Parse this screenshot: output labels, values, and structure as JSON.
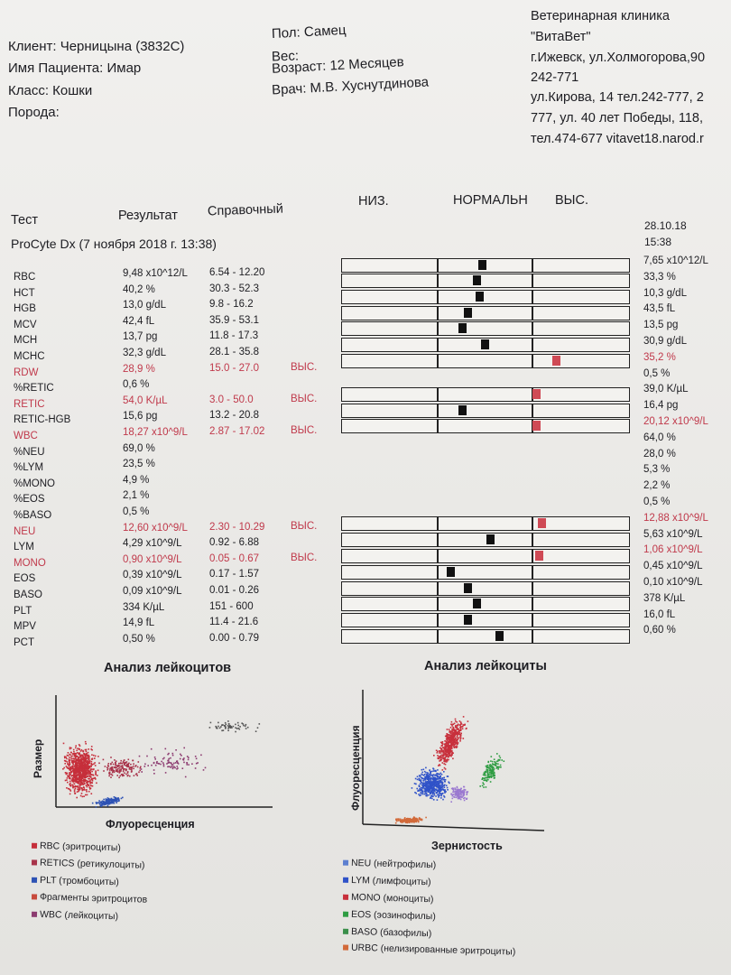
{
  "patient": {
    "client": "Клиент: Черницына (3832С)",
    "name": "Имя Пациента: Имар",
    "class": "Класс: Кошки",
    "breed": "Порода:",
    "sex": "Пол: Самец",
    "weight": "Вес:",
    "age": "Возраст: 12 Месяцев",
    "doctor": "Врач: М.В. Хуснутдинова"
  },
  "clinic": {
    "line1": "Ветеринарная клиника",
    "line2": "\"ВитаВет\"",
    "line3": "г.Ижевск, ул.Холмогорова,90",
    "line4": "242-771",
    "line5": "ул.Кирова, 14 тел.242-777, 2",
    "line6": "777, ул. 40 лет Победы, 118,",
    "line7": "тел.474-677 vitavet18.narod.r"
  },
  "columns": {
    "test": "Тест",
    "result": "Результат",
    "reference": "Справочный",
    "low": "НИЗ.",
    "normal": "НОРМАЛЬН",
    "high": "ВЫС."
  },
  "instrument": "ProCyte Dx (7 ноября 2018 г. 13:38)",
  "previous_date": "28.10.18",
  "previous_time": "15:38",
  "tests": [
    {
      "name": "RBC",
      "result": "9,48 x10^12/L",
      "ref": "6.54 - 12.20",
      "flag": ""
    },
    {
      "name": "HCT",
      "result": "40,2 %",
      "ref": "30.3 - 52.3",
      "flag": ""
    },
    {
      "name": "HGB",
      "result": "13,0 g/dL",
      "ref": "9.8 - 16.2",
      "flag": ""
    },
    {
      "name": "MCV",
      "result": "42,4 fL",
      "ref": "35.9 - 53.1",
      "flag": ""
    },
    {
      "name": "MCH",
      "result": "13,7 pg",
      "ref": "11.8 - 17.3",
      "flag": ""
    },
    {
      "name": "MCHC",
      "result": "32,3 g/dL",
      "ref": "28.1 - 35.8",
      "flag": ""
    },
    {
      "name": "RDW",
      "result": "28,9 %",
      "ref": "15.0 - 27.0",
      "flag": "ВЫС."
    },
    {
      "name": "%RETIC",
      "result": "0,6 %",
      "ref": "",
      "flag": ""
    },
    {
      "name": "RETIC",
      "result": "54,0 K/µL",
      "ref": "3.0 - 50.0",
      "flag": "ВЫС."
    },
    {
      "name": "RETIC-HGB",
      "result": "15,6 pg",
      "ref": "13.2 - 20.8",
      "flag": ""
    },
    {
      "name": "WBC",
      "result": "18,27 x10^9/L",
      "ref": "2.87 - 17.02",
      "flag": "ВЫС."
    },
    {
      "name": "%NEU",
      "result": "69,0 %",
      "ref": "",
      "flag": ""
    },
    {
      "name": "%LYM",
      "result": "23,5 %",
      "ref": "",
      "flag": ""
    },
    {
      "name": "%MONO",
      "result": "4,9 %",
      "ref": "",
      "flag": ""
    },
    {
      "name": "%EOS",
      "result": "2,1 %",
      "ref": "",
      "flag": ""
    },
    {
      "name": "%BASO",
      "result": "0,5 %",
      "ref": "",
      "flag": ""
    },
    {
      "name": "NEU",
      "result": "12,60 x10^9/L",
      "ref": "2.30 - 10.29",
      "flag": "ВЫС."
    },
    {
      "name": "LYM",
      "result": "4,29 x10^9/L",
      "ref": "0.92 - 6.88",
      "flag": ""
    },
    {
      "name": "MONO",
      "result": "0,90 x10^9/L",
      "ref": "0.05 - 0.67",
      "flag": "ВЫС."
    },
    {
      "name": "EOS",
      "result": "0,39 x10^9/L",
      "ref": "0.17 - 1.57",
      "flag": ""
    },
    {
      "name": "BASO",
      "result": "0,09 x10^9/L",
      "ref": "0.01 - 0.26",
      "flag": ""
    },
    {
      "name": "PLT",
      "result": "334 K/µL",
      "ref": "151 - 600",
      "flag": ""
    },
    {
      "name": "MPV",
      "result": "14,9 fL",
      "ref": "11.4 - 21.6",
      "flag": ""
    },
    {
      "name": "PCT",
      "result": "0,50 %",
      "ref": "0.00 - 0.79",
      "flag": ""
    }
  ],
  "previous_values": [
    {
      "text": "7,65 x10^12/L",
      "high": false
    },
    {
      "text": "33,3 %",
      "high": false
    },
    {
      "text": "10,3 g/dL",
      "high": false
    },
    {
      "text": "43,5 fL",
      "high": false
    },
    {
      "text": "13,5 pg",
      "high": false
    },
    {
      "text": "30,9 g/dL",
      "high": false
    },
    {
      "text": "35,2 %",
      "high": true
    },
    {
      "text": "0,5 %",
      "high": false
    },
    {
      "text": "39,0 K/µL",
      "high": false
    },
    {
      "text": "16,4 pg",
      "high": false
    },
    {
      "text": "20,12 x10^9/L",
      "high": true
    },
    {
      "text": "64,0 %",
      "high": false
    },
    {
      "text": "28,0 %",
      "high": false
    },
    {
      "text": "5,3 %",
      "high": false
    },
    {
      "text": "2,2 %",
      "high": false
    },
    {
      "text": "0,5 %",
      "high": false
    },
    {
      "text": "12,88 x10^9/L",
      "high": true
    },
    {
      "text": "5,63 x10^9/L",
      "high": false
    },
    {
      "text": "1,06 x10^9/L",
      "high": true
    },
    {
      "text": "0,45 x10^9/L",
      "high": false
    },
    {
      "text": "0,10 x10^9/L",
      "high": false
    },
    {
      "text": "378 K/µL",
      "high": false
    },
    {
      "text": "16,0 fL",
      "high": false
    },
    {
      "text": "0,60 %",
      "high": false
    }
  ],
  "range_markers": [
    {
      "test": "RBC",
      "position": 0.49,
      "high": false
    },
    {
      "test": "HCT",
      "position": 0.47,
      "high": false
    },
    {
      "test": "HGB",
      "position": 0.48,
      "high": false
    },
    {
      "test": "MCV",
      "position": 0.44,
      "high": false
    },
    {
      "test": "MCH",
      "position": 0.42,
      "high": false
    },
    {
      "test": "MCHC",
      "position": 0.5,
      "high": false
    },
    {
      "test": "RDW",
      "position": 0.75,
      "high": true
    },
    {
      "test": "RETIC",
      "position": 0.68,
      "high": true
    },
    {
      "test": "RETIC-HGB",
      "position": 0.42,
      "high": false
    },
    {
      "test": "WBC",
      "position": 0.68,
      "high": true
    },
    {
      "test": "NEU",
      "position": 0.7,
      "high": true
    },
    {
      "test": "LYM",
      "position": 0.52,
      "high": false
    },
    {
      "test": "MONO",
      "position": 0.69,
      "high": true
    },
    {
      "test": "EOS",
      "position": 0.38,
      "high": false
    },
    {
      "test": "BASO",
      "position": 0.44,
      "high": false
    },
    {
      "test": "PLT",
      "position": 0.47,
      "high": false
    },
    {
      "test": "MPV",
      "position": 0.44,
      "high": false
    },
    {
      "test": "PCT",
      "position": 0.55,
      "high": false
    }
  ],
  "plot_left": {
    "title": "Анализ лейкоцитов",
    "xlabel": "Флуоресценция",
    "ylabel": "Размер",
    "legend": [
      {
        "label": "RBC (эритроциты)",
        "color": "#c62f3b"
      },
      {
        "label": "RETICS (ретикулоциты)",
        "color": "#a8334a"
      },
      {
        "label": "PLT (тромбоциты)",
        "color": "#2d52b4"
      },
      {
        "label": "Фрагменты эритроцитов",
        "color": "#c84a3c"
      },
      {
        "label": "WBC (лейкоциты)",
        "color": "#8c3b70"
      }
    ]
  },
  "plot_right": {
    "title": "Анализ лейкоциты",
    "xlabel": "Зернистость",
    "ylabel": "Флуоресценция",
    "legend": [
      {
        "label": "NEU (нейтрофилы)",
        "color": "#5d7fd0"
      },
      {
        "label": "LYM (лимфоциты)",
        "color": "#2f52c8"
      },
      {
        "label": "MONO (моноциты)",
        "color": "#c8303c"
      },
      {
        "label": "EOS (эозинофилы)",
        "color": "#2f9d43"
      },
      {
        "label": "BASO (базофилы)",
        "color": "#3a8f4a"
      },
      {
        "label": "URBC (нелизированные эритроциты)",
        "color": "#d26a3a"
      }
    ]
  }
}
